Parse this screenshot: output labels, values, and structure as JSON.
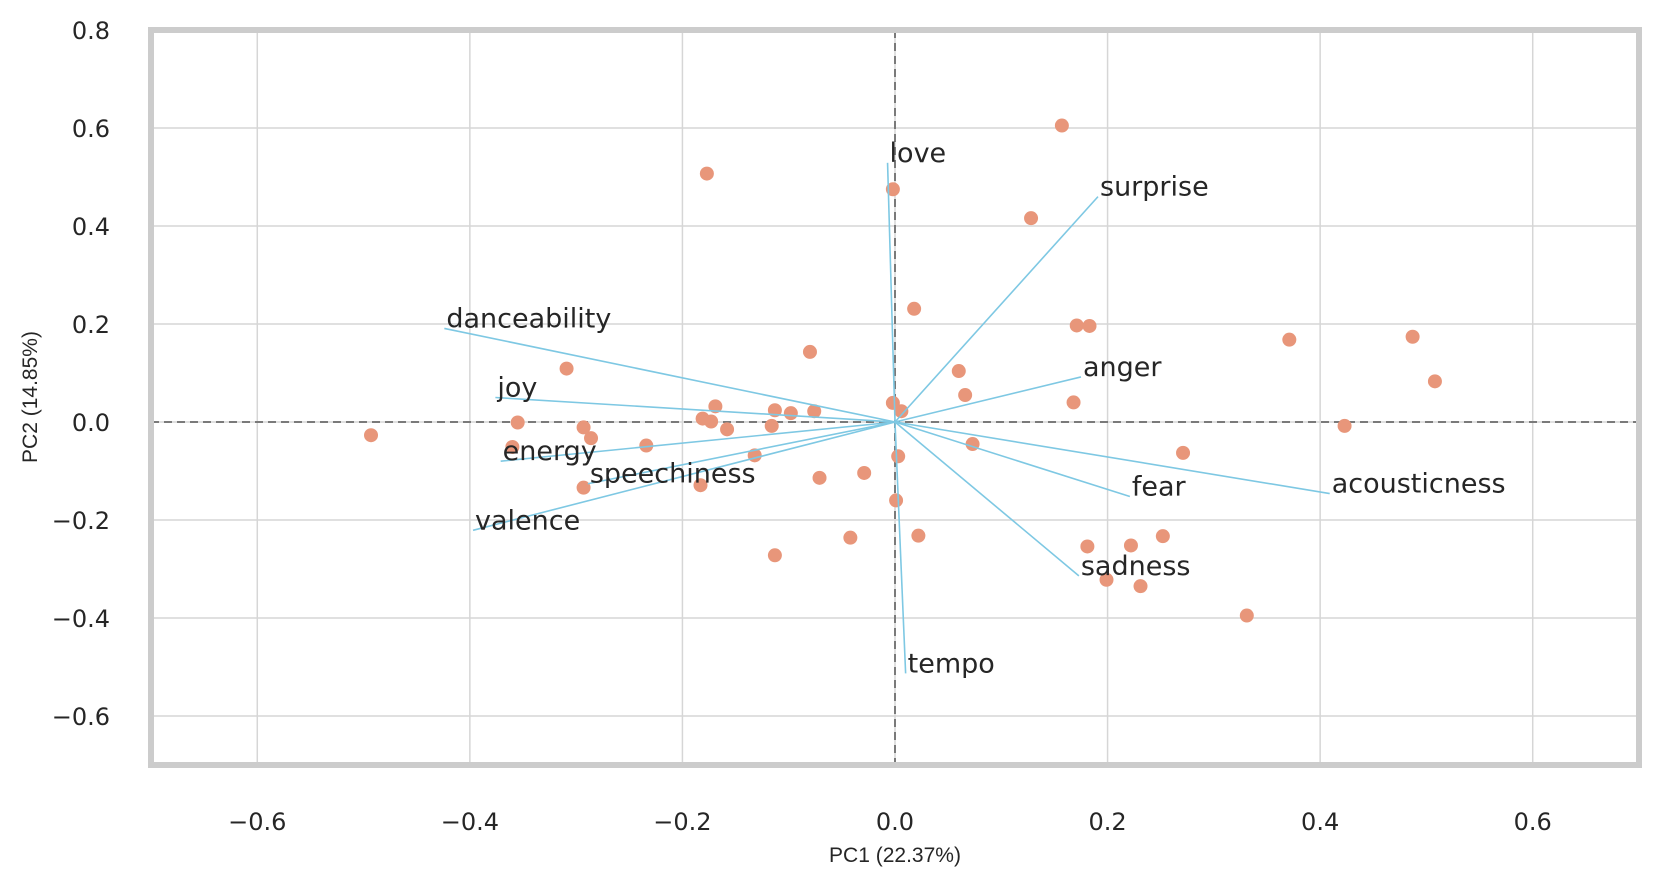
{
  "chart_data": {
    "type": "scatter",
    "xlabel": "PC1 (22.37%)",
    "ylabel": "PC2 (14.85%)",
    "xlim": [
      -0.7,
      0.7
    ],
    "ylim": [
      -0.7,
      0.8
    ],
    "xticks": [
      -0.6,
      -0.4,
      -0.2,
      0.0,
      0.2,
      0.4,
      0.6
    ],
    "yticks": [
      -0.6,
      -0.4,
      -0.2,
      0.0,
      0.2,
      0.4,
      0.6,
      0.8
    ],
    "xtick_labels": [
      "−0.6",
      "−0.4",
      "−0.2",
      "0.0",
      "0.2",
      "0.4",
      "0.6"
    ],
    "ytick_labels": [
      "−0.6",
      "−0.4",
      "−0.2",
      "0.0",
      "0.2",
      "0.4",
      "0.6",
      "0.8"
    ],
    "grid": true,
    "reference_lines": {
      "x": 0,
      "y": 0,
      "style": "dashed"
    },
    "point_color": "#E8967A",
    "vector_color": "#7EC8E3",
    "points": [
      {
        "x": -0.493,
        "y": -0.027
      },
      {
        "x": -0.309,
        "y": 0.109
      },
      {
        "x": -0.355,
        "y": -0.001
      },
      {
        "x": -0.36,
        "y": -0.051
      },
      {
        "x": -0.293,
        "y": -0.011
      },
      {
        "x": -0.286,
        "y": -0.033
      },
      {
        "x": -0.293,
        "y": -0.134
      },
      {
        "x": -0.234,
        "y": -0.048
      },
      {
        "x": -0.177,
        "y": 0.507
      },
      {
        "x": -0.181,
        "y": 0.007
      },
      {
        "x": -0.173,
        "y": 0.001
      },
      {
        "x": -0.169,
        "y": 0.032
      },
      {
        "x": -0.158,
        "y": -0.015
      },
      {
        "x": -0.183,
        "y": -0.129
      },
      {
        "x": -0.132,
        "y": -0.068
      },
      {
        "x": -0.116,
        "y": -0.008
      },
      {
        "x": -0.113,
        "y": 0.024
      },
      {
        "x": -0.098,
        "y": 0.018
      },
      {
        "x": -0.076,
        "y": 0.022
      },
      {
        "x": -0.08,
        "y": 0.143
      },
      {
        "x": -0.071,
        "y": -0.114
      },
      {
        "x": -0.113,
        "y": -0.272
      },
      {
        "x": -0.042,
        "y": -0.236
      },
      {
        "x": -0.029,
        "y": -0.104
      },
      {
        "x": -0.002,
        "y": 0.475
      },
      {
        "x": -0.002,
        "y": 0.039
      },
      {
        "x": 0.006,
        "y": 0.022
      },
      {
        "x": 0.003,
        "y": -0.07
      },
      {
        "x": 0.001,
        "y": -0.16
      },
      {
        "x": 0.018,
        "y": 0.231
      },
      {
        "x": 0.022,
        "y": -0.232
      },
      {
        "x": 0.06,
        "y": 0.104
      },
      {
        "x": 0.066,
        "y": 0.055
      },
      {
        "x": 0.073,
        "y": -0.045
      },
      {
        "x": 0.128,
        "y": 0.416
      },
      {
        "x": 0.157,
        "y": 0.605
      },
      {
        "x": 0.171,
        "y": 0.197
      },
      {
        "x": 0.183,
        "y": 0.196
      },
      {
        "x": 0.168,
        "y": 0.04
      },
      {
        "x": 0.181,
        "y": -0.254
      },
      {
        "x": 0.199,
        "y": -0.322
      },
      {
        "x": 0.222,
        "y": -0.252
      },
      {
        "x": 0.231,
        "y": -0.335
      },
      {
        "x": 0.252,
        "y": -0.233
      },
      {
        "x": 0.271,
        "y": -0.063
      },
      {
        "x": 0.331,
        "y": -0.395
      },
      {
        "x": 0.371,
        "y": 0.168
      },
      {
        "x": 0.423,
        "y": -0.008
      },
      {
        "x": 0.487,
        "y": 0.174
      },
      {
        "x": 0.508,
        "y": 0.083
      }
    ],
    "loadings": [
      {
        "label": "danceability",
        "x": -0.424,
        "y": 0.191
      },
      {
        "label": "joy",
        "x": -0.376,
        "y": 0.05
      },
      {
        "label": "energy",
        "x": -0.371,
        "y": -0.08
      },
      {
        "label": "speechiness",
        "x": -0.289,
        "y": -0.126
      },
      {
        "label": "valence",
        "x": -0.397,
        "y": -0.221
      },
      {
        "label": "love",
        "x": -0.007,
        "y": 0.529
      },
      {
        "label": "surprise",
        "x": 0.191,
        "y": 0.46
      },
      {
        "label": "anger",
        "x": 0.175,
        "y": 0.092
      },
      {
        "label": "acousticness",
        "x": 0.409,
        "y": -0.146
      },
      {
        "label": "fear",
        "x": 0.221,
        "y": -0.152
      },
      {
        "label": "sadness",
        "x": 0.173,
        "y": -0.314
      },
      {
        "label": "tempo",
        "x": 0.01,
        "y": -0.513
      }
    ]
  }
}
